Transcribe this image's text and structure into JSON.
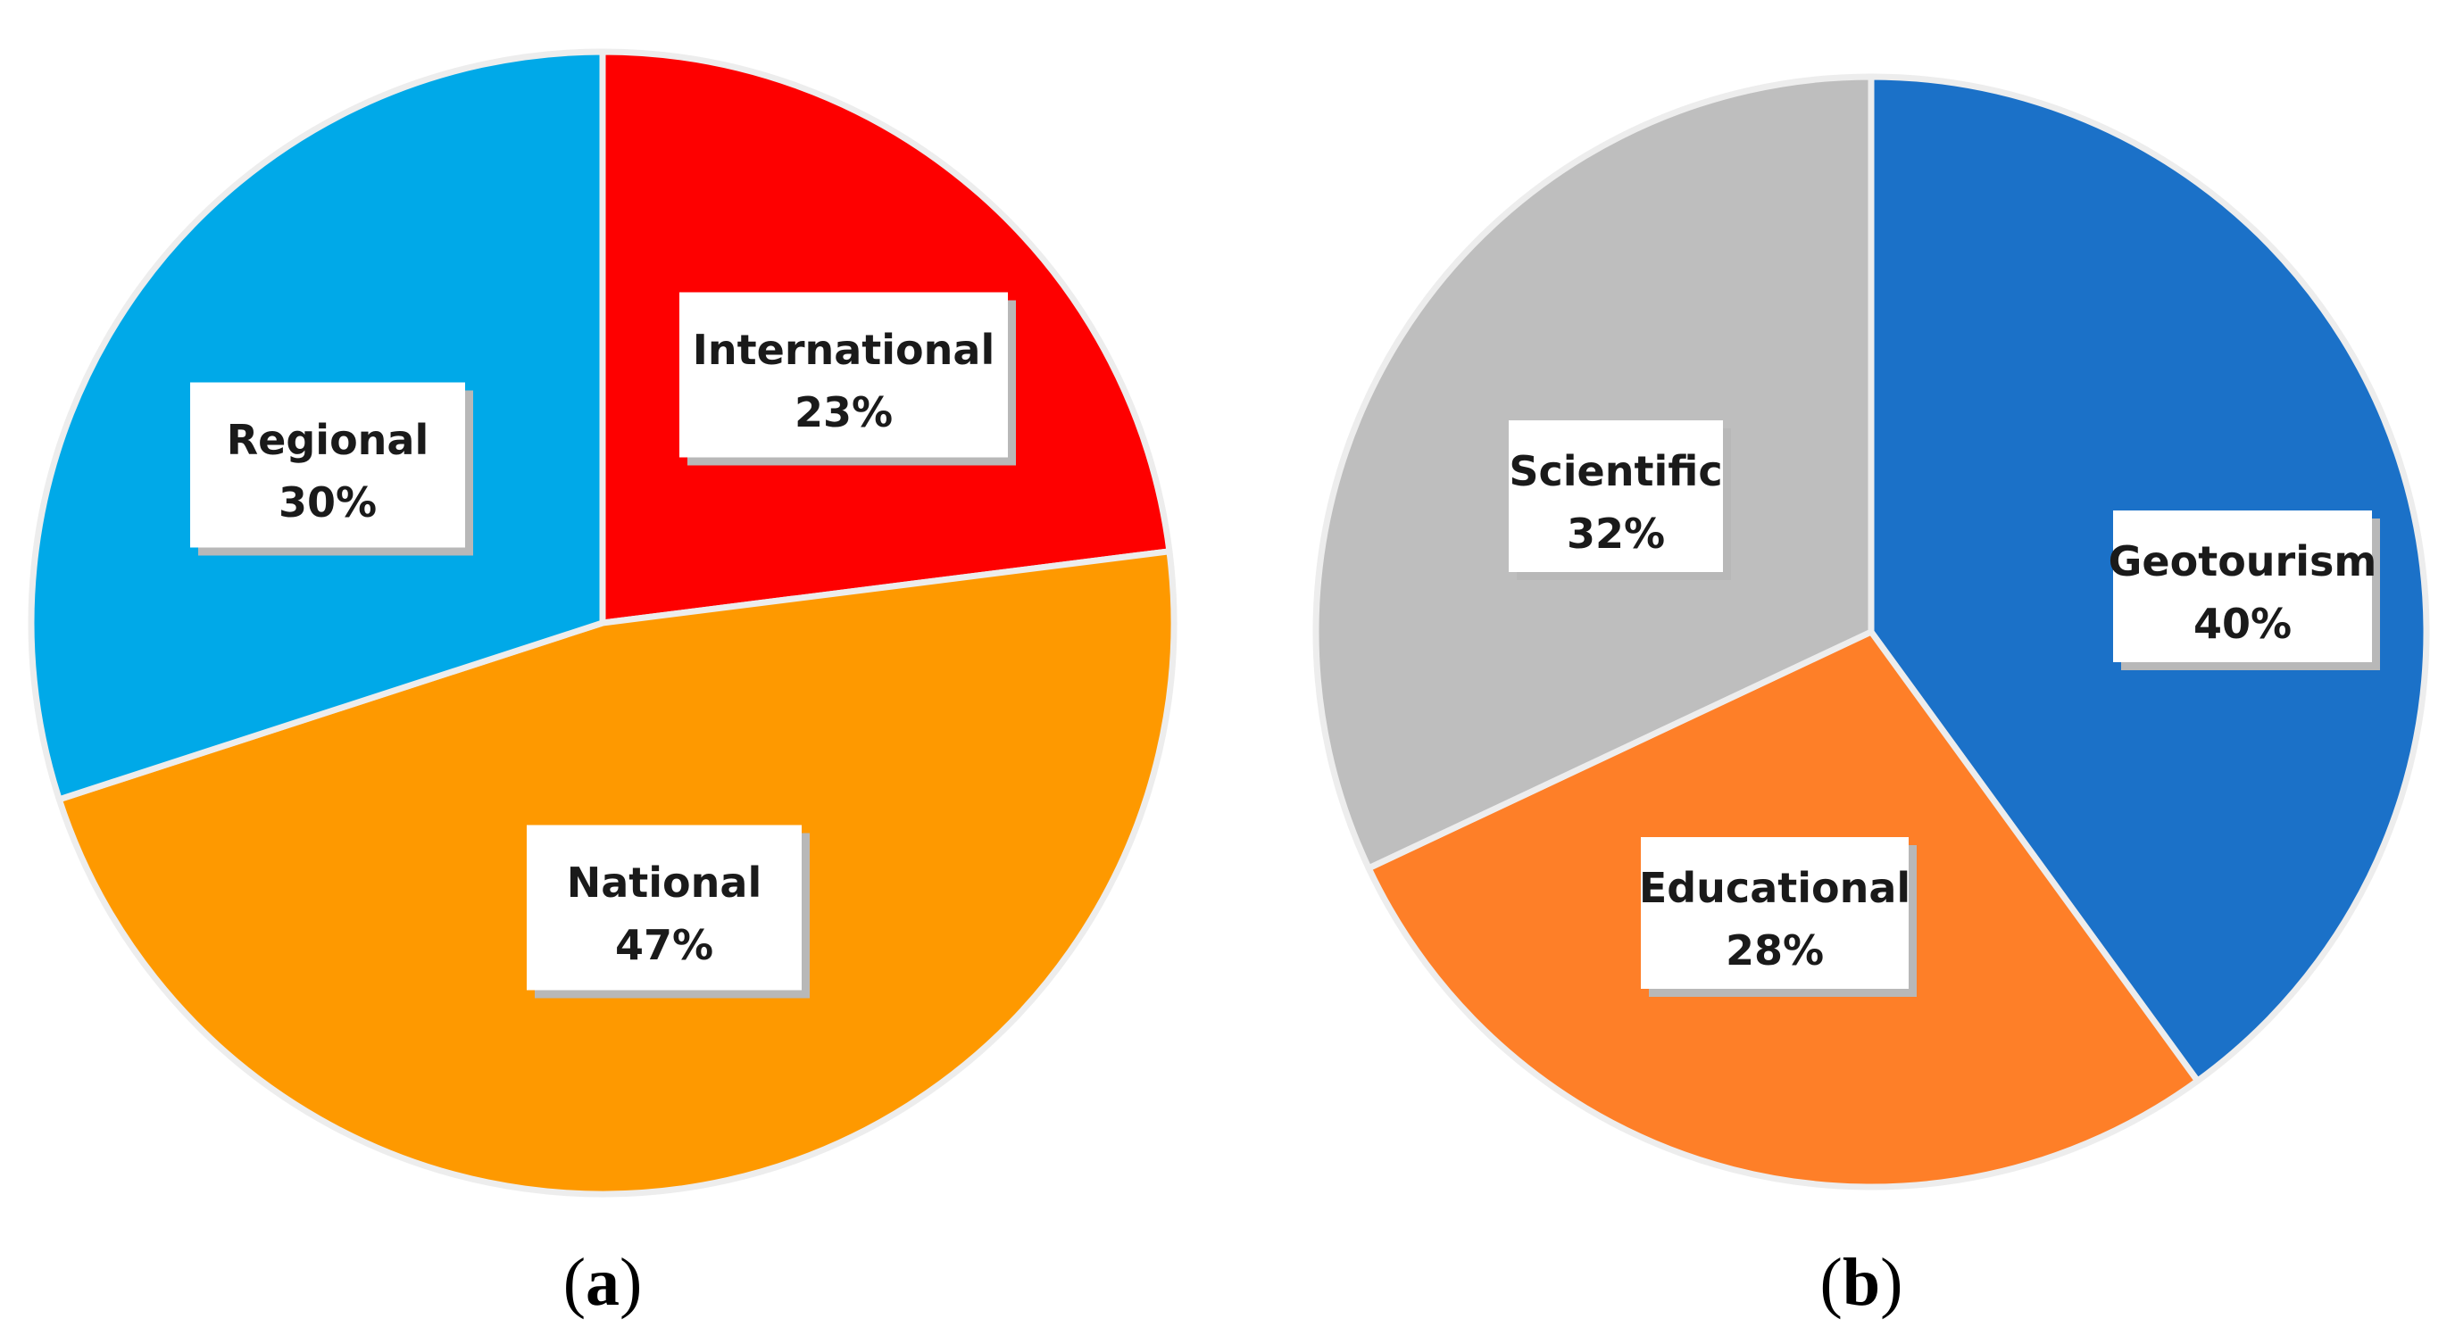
{
  "chart_data": [
    {
      "type": "pie",
      "panel_label": "a",
      "slices": [
        {
          "label": "International",
          "value": 23,
          "value_text": "23%",
          "color": "#fe0000"
        },
        {
          "label": "National",
          "value": 47,
          "value_text": "47%",
          "color": "#fe9900"
        },
        {
          "label": "Regional",
          "value": 30,
          "value_text": "30%",
          "color": "#00a9e8"
        }
      ],
      "start_angle_deg": 0,
      "direction": "clockwise",
      "legend": "none"
    },
    {
      "type": "pie",
      "panel_label": "b",
      "slices": [
        {
          "label": "Geotourism",
          "value": 40,
          "value_text": "40%",
          "color": "#1b71c8"
        },
        {
          "label": "Educational",
          "value": 28,
          "value_text": "28%",
          "color": "#fe7f28"
        },
        {
          "label": "Scientific",
          "value": 32,
          "value_text": "32%",
          "color": "#bebebe"
        }
      ],
      "start_angle_deg": 0,
      "direction": "clockwise",
      "legend": "none"
    }
  ]
}
